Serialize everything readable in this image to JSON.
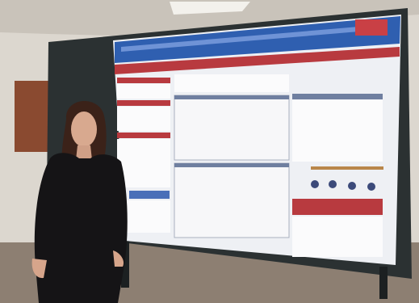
{
  "photo": {
    "subject": "person-standing-beside-research-poster",
    "poster": {
      "section_count_left": 5,
      "section_count_right": 3,
      "accent_color": "#b83a3f",
      "banner_color": "#2f5fb0",
      "panel_color": "#eef0f4"
    },
    "colors": {
      "wall": "#dcd7cf",
      "wood_wall": "#8a4a30",
      "board_frame": "#2b3132",
      "floor": "#8d7f72",
      "jacket": "#151416",
      "hair": "#3b2219"
    }
  }
}
